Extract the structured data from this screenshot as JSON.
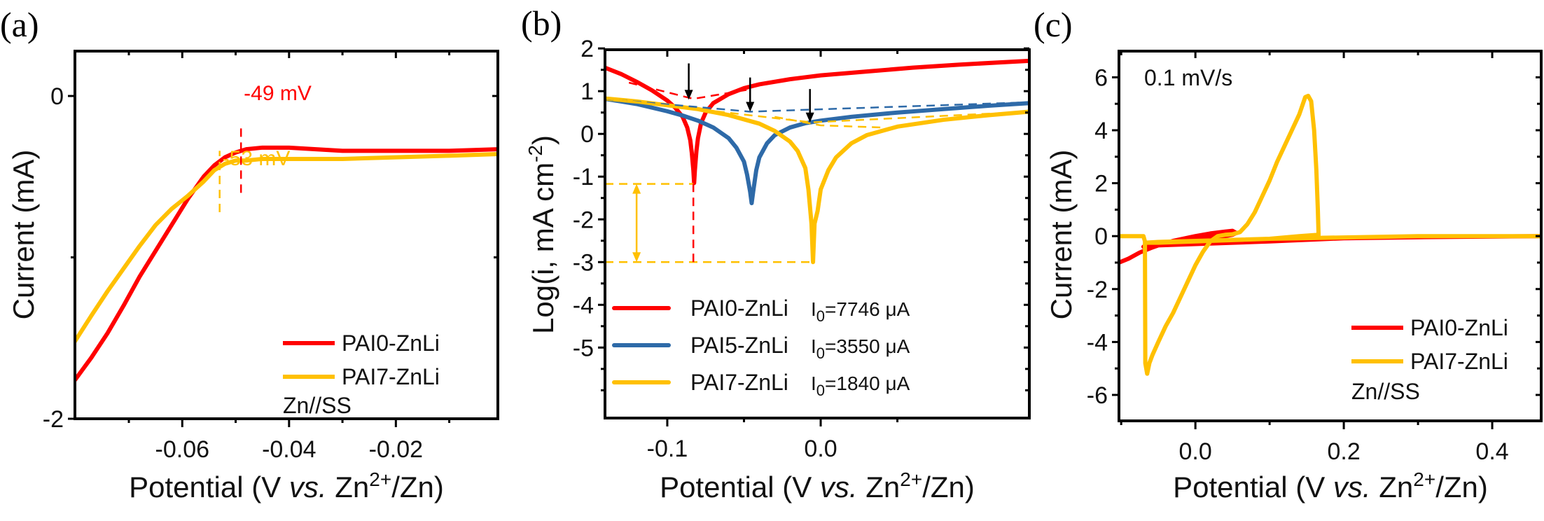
{
  "chart_data": [
    {
      "id": "a",
      "type": "line",
      "panel_label": "(a)",
      "xlabel": "Potential (V vs. Zn2+/Zn)",
      "xlabel_parts": {
        "main": "Potential (V ",
        "italic": "vs.",
        "after": " Zn",
        "sup": "2+",
        "end": "/Zn)"
      },
      "ylabel": "Current (mA)",
      "xlim": [
        -0.0801,
        -0.0009
      ],
      "ylim": [
        -2.0,
        0.278
      ],
      "xticks": [
        -0.06,
        -0.04,
        -0.02
      ],
      "xtick_labels": [
        "-0.06",
        "-0.04",
        "-0.02"
      ],
      "xminor": [
        -0.07,
        -0.05,
        -0.03,
        -0.01
      ],
      "yticks": [
        0,
        -2
      ],
      "ytick_labels": [
        "0",
        "-2"
      ],
      "yminor": [
        -1
      ],
      "series": [
        {
          "name": "PAI0-ZnLi",
          "color": "#ff0000",
          "x": [
            -0.0801,
            -0.077,
            -0.074,
            -0.071,
            -0.068,
            -0.065,
            -0.062,
            -0.059,
            -0.056,
            -0.054,
            -0.052,
            -0.05,
            -0.048,
            -0.045,
            -0.04,
            -0.035,
            -0.03,
            -0.02,
            -0.01,
            -0.0009
          ],
          "y": [
            -1.76,
            -1.62,
            -1.47,
            -1.3,
            -1.12,
            -0.96,
            -0.8,
            -0.64,
            -0.5,
            -0.43,
            -0.38,
            -0.35,
            -0.33,
            -0.32,
            -0.32,
            -0.33,
            -0.34,
            -0.34,
            -0.34,
            -0.33
          ]
        },
        {
          "name": "PAI7-ZnLi",
          "color": "#ffc000",
          "x": [
            -0.0801,
            -0.077,
            -0.074,
            -0.071,
            -0.068,
            -0.065,
            -0.062,
            -0.059,
            -0.056,
            -0.054,
            -0.052,
            -0.05,
            -0.048,
            -0.045,
            -0.04,
            -0.03,
            -0.02,
            -0.01,
            -0.0009
          ],
          "y": [
            -1.52,
            -1.36,
            -1.21,
            -1.07,
            -0.93,
            -0.8,
            -0.7,
            -0.62,
            -0.53,
            -0.46,
            -0.42,
            -0.4,
            -0.4,
            -0.39,
            -0.39,
            -0.39,
            -0.38,
            -0.37,
            -0.36
          ]
        }
      ],
      "annotations": [
        {
          "text": "-49 mV",
          "color": "#ff0000",
          "x": -0.049
        },
        {
          "text": "-53 mV",
          "color": "#ffc000",
          "x": -0.053
        }
      ],
      "vlines": [
        {
          "x": -0.049,
          "y_from": -0.6,
          "y_to": -0.17,
          "color": "#ff0000"
        },
        {
          "x": -0.053,
          "y_from": -0.72,
          "y_to": -0.34,
          "color": "#ffc000"
        }
      ],
      "legend": {
        "position": "bottom-right",
        "entries": [
          "PAI0-ZnLi",
          "PAI7-ZnLi"
        ],
        "note": "Zn//SS"
      }
    },
    {
      "id": "b",
      "type": "line",
      "panel_label": "(b)",
      "xlabel": "Potential (V vs. Zn2+/Zn)",
      "xlabel_parts": {
        "main": "Potential (V ",
        "italic": "vs.",
        "after": " Zn",
        "sup": "2+",
        "end": "/Zn)"
      },
      "ylabel": "Log(i, mA cm-2)",
      "ylabel_parts": {
        "main": "Log(i, mA cm",
        "sup": "-2",
        "end": ")"
      },
      "xlim": [
        -0.1406,
        0.136
      ],
      "ylim": [
        -6.65,
        1.97
      ],
      "xticks": [
        -0.1,
        0.0
      ],
      "xtick_labels": [
        "-0.1",
        "0.0"
      ],
      "xminor": [
        -0.05,
        0.05
      ],
      "yticks": [
        2,
        1,
        0,
        -1,
        -2,
        -3,
        -4,
        -5
      ],
      "ytick_labels": [
        "2",
        "1",
        "0",
        "-1",
        "-2",
        "-3",
        "-4",
        "-5"
      ],
      "yminor": [
        1.5,
        0.5,
        -0.5,
        -1.5,
        -2.5,
        -3.5,
        -4.5,
        -5.5,
        -6
      ],
      "series": [
        {
          "name": "PAI0-ZnLi",
          "color": "#ff0000",
          "i0": "7746",
          "x": [
            -0.1406,
            -0.13,
            -0.12,
            -0.11,
            -0.1,
            -0.095,
            -0.09,
            -0.087,
            -0.085,
            -0.084,
            -0.083,
            -0.0825,
            -0.082,
            -0.081,
            -0.08,
            -0.078,
            -0.075,
            -0.07,
            -0.06,
            -0.05,
            -0.04,
            -0.02,
            0.0,
            0.03,
            0.06,
            0.09,
            0.12,
            0.136
          ],
          "y": [
            1.55,
            1.4,
            1.22,
            1.02,
            0.78,
            0.62,
            0.4,
            0.15,
            -0.15,
            -0.45,
            -0.85,
            -1.15,
            -0.85,
            -0.4,
            -0.1,
            0.25,
            0.5,
            0.72,
            0.93,
            1.07,
            1.16,
            1.28,
            1.37,
            1.46,
            1.55,
            1.62,
            1.68,
            1.71
          ]
        },
        {
          "name": "PAI5-ZnLi",
          "color": "#2e6aa8",
          "i0": "3550",
          "x": [
            -0.1406,
            -0.12,
            -0.1,
            -0.09,
            -0.08,
            -0.07,
            -0.06,
            -0.055,
            -0.05,
            -0.048,
            -0.046,
            -0.045,
            -0.044,
            -0.042,
            -0.04,
            -0.035,
            -0.03,
            -0.02,
            -0.01,
            0.0,
            0.02,
            0.05,
            0.08,
            0.11,
            0.136
          ],
          "y": [
            0.82,
            0.7,
            0.53,
            0.43,
            0.31,
            0.15,
            -0.1,
            -0.32,
            -0.65,
            -0.95,
            -1.35,
            -1.62,
            -1.35,
            -0.85,
            -0.55,
            -0.22,
            -0.03,
            0.15,
            0.25,
            0.31,
            0.4,
            0.5,
            0.58,
            0.66,
            0.72
          ]
        },
        {
          "name": "PAI7-ZnLi",
          "color": "#ffc000",
          "i0": "1840",
          "x": [
            -0.1406,
            -0.12,
            -0.1,
            -0.08,
            -0.06,
            -0.04,
            -0.03,
            -0.02,
            -0.015,
            -0.01,
            -0.008,
            -0.006,
            -0.005,
            -0.004,
            -0.002,
            0.0,
            0.005,
            0.01,
            0.02,
            0.03,
            0.05,
            0.08,
            0.11,
            0.136
          ],
          "y": [
            0.83,
            0.76,
            0.67,
            0.58,
            0.44,
            0.24,
            0.07,
            -0.18,
            -0.4,
            -0.8,
            -1.3,
            -2.1,
            -3.0,
            -2.1,
            -1.8,
            -1.3,
            -0.85,
            -0.55,
            -0.22,
            -0.03,
            0.17,
            0.33,
            0.44,
            0.52
          ]
        }
      ],
      "tafel_lines": [
        {
          "color": "#ff0000",
          "x": [
            -0.125,
            -0.083,
            -0.045
          ],
          "y": [
            1.2,
            0.82,
            1.05
          ]
        },
        {
          "color": "#2e6aa8",
          "x": [
            -0.1406,
            -0.046,
            0.136
          ],
          "y": [
            0.82,
            0.52,
            0.74
          ]
        },
        {
          "color": "#ffc000",
          "x": [
            -0.1406,
            -0.006,
            0.136
          ],
          "y": [
            0.83,
            0.27,
            0.52
          ]
        },
        {
          "color": "#ffc000",
          "x": [
            -0.03,
            0.0,
            0.04
          ],
          "y": [
            0.4,
            0.2,
            0.15
          ]
        }
      ],
      "arrows": [
        {
          "x": -0.086,
          "y_from": 1.65,
          "y_to": 0.8
        },
        {
          "x": -0.046,
          "y_from": 1.32,
          "y_to": 0.52
        },
        {
          "x": -0.007,
          "y_from": 1.05,
          "y_to": 0.27
        }
      ],
      "guide_lines": [
        {
          "type": "h",
          "y": -1.17,
          "x_from": -0.1406,
          "x_to": -0.083,
          "color": "#ffc000"
        },
        {
          "type": "h",
          "y": -3.0,
          "x_from": -0.1406,
          "x_to": -0.006,
          "color": "#ffc000"
        },
        {
          "type": "v",
          "x": -0.083,
          "y_from": -3.0,
          "y_to": -1.17,
          "color": "#ff0000"
        }
      ],
      "double_arrow": {
        "x": -0.12,
        "y_from": -1.17,
        "y_to": -3.0,
        "color": "#ffc000"
      },
      "legend": {
        "position": "bottom-left",
        "entries": [
          "PAI0-ZnLi",
          "PAI5-ZnLi",
          "PAI7-ZnLi"
        ],
        "i0_prefix": "I",
        "i0_sub": "0",
        "i0_unit": "μA"
      }
    },
    {
      "id": "c",
      "type": "line",
      "panel_label": "(c)",
      "xlabel": "Potential (V vs. Zn2+/Zn)",
      "xlabel_parts": {
        "main": "Potential (V ",
        "italic": "vs.",
        "after": " Zn",
        "sup": "2+",
        "end": "/Zn)"
      },
      "ylabel": "Current (mA)",
      "xlim": [
        -0.103,
        0.466
      ],
      "ylim": [
        -6.98,
        6.99
      ],
      "xticks": [
        0.0,
        0.2,
        0.4
      ],
      "xtick_labels": [
        "0.0",
        "0.2",
        "0.4"
      ],
      "xminor": [
        -0.1,
        0.1,
        0.3
      ],
      "yticks": [
        6,
        4,
        2,
        0,
        -2,
        -4,
        -6
      ],
      "ytick_labels": [
        "6",
        "4",
        "2",
        "0",
        "-2",
        "-4",
        "-6"
      ],
      "yminor": [
        5,
        3,
        1,
        -1,
        -3,
        -5
      ],
      "series": [
        {
          "name": "PAI0-ZnLi",
          "color": "#ff0000",
          "x": [
            -0.103,
            -0.09,
            -0.075,
            -0.06,
            -0.05,
            -0.03,
            0.0,
            0.02,
            0.04,
            0.05,
            0.055,
            0.05,
            0.04,
            0.02,
            0.0,
            -0.03,
            -0.05,
            -0.06,
            -0.07,
            -0.05,
            0.0,
            0.1,
            0.2,
            0.3,
            0.466
          ],
          "y": [
            -1.0,
            -0.85,
            -0.62,
            -0.45,
            -0.35,
            -0.18,
            0.0,
            0.1,
            0.17,
            0.2,
            0.12,
            0.05,
            0.0,
            -0.05,
            -0.12,
            -0.2,
            -0.3,
            -0.35,
            -0.4,
            -0.35,
            -0.3,
            -0.2,
            -0.08,
            -0.04,
            0.0
          ]
        },
        {
          "name": "PAI7-ZnLi",
          "color": "#ffc000",
          "x": [
            -0.103,
            -0.07,
            -0.068,
            -0.0675,
            -0.065,
            -0.062,
            -0.058,
            -0.05,
            -0.04,
            -0.03,
            -0.02,
            -0.01,
            0.0,
            0.01,
            0.02,
            0.03,
            0.04,
            0.05,
            0.06,
            0.07,
            0.08,
            0.09,
            0.1,
            0.11,
            0.12,
            0.13,
            0.14,
            0.148,
            0.152,
            0.156,
            0.16,
            0.163,
            0.165,
            0.166,
            0.14,
            0.1,
            0.05,
            0.0,
            -0.05,
            -0.068,
            -0.05,
            0.1,
            0.2,
            0.3,
            0.466
          ],
          "y": [
            0.0,
            0.0,
            -0.2,
            -4.8,
            -5.2,
            -4.8,
            -4.5,
            -4.0,
            -3.4,
            -2.9,
            -2.3,
            -1.7,
            -1.1,
            -0.6,
            -0.2,
            0.0,
            0.05,
            0.07,
            0.15,
            0.45,
            0.9,
            1.5,
            2.1,
            2.8,
            3.4,
            4.0,
            4.6,
            5.25,
            5.3,
            5.1,
            4.0,
            2.5,
            1.0,
            0.05,
            0.0,
            -0.1,
            -0.15,
            -0.2,
            -0.25,
            -0.25,
            -0.22,
            -0.1,
            -0.05,
            0.0,
            0.0
          ]
        }
      ],
      "annotations": [
        {
          "text": "0.1 mV/s",
          "color": "#111111"
        }
      ],
      "legend": {
        "position": "bottom-right",
        "entries": [
          "PAI0-ZnLi",
          "PAI7-ZnLi"
        ],
        "note": "Zn//SS"
      }
    }
  ]
}
